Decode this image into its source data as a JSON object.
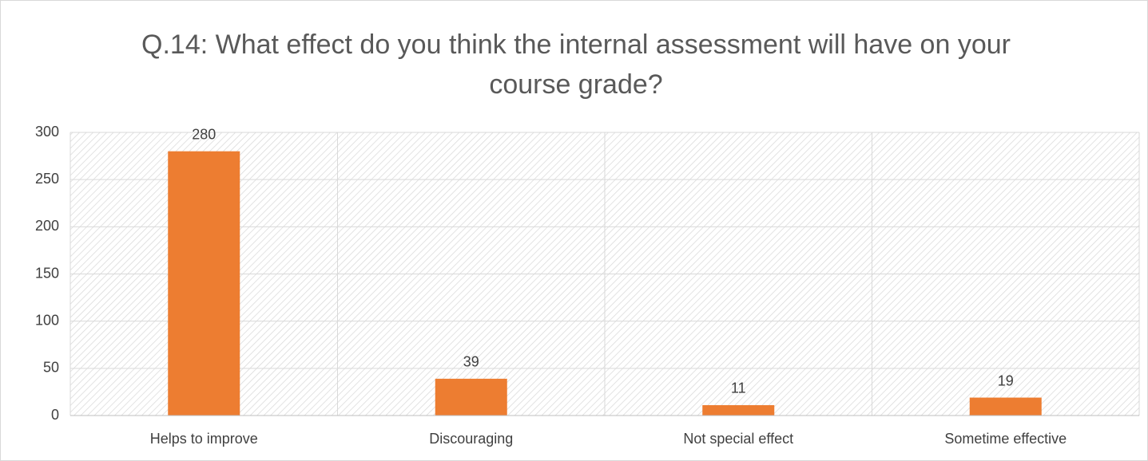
{
  "chart_data": {
    "type": "bar",
    "title": "Q.14: What effect do you think the internal assessment will have on your course grade?",
    "categories": [
      "Helps to improve",
      "Discouraging",
      "Not special effect",
      "Sometime effective"
    ],
    "values": [
      280,
      39,
      11,
      19
    ],
    "color": "#ed7d31",
    "ylim": [
      0,
      300
    ],
    "yticks": [
      0,
      50,
      100,
      150,
      200,
      250,
      300
    ],
    "grid": true
  }
}
